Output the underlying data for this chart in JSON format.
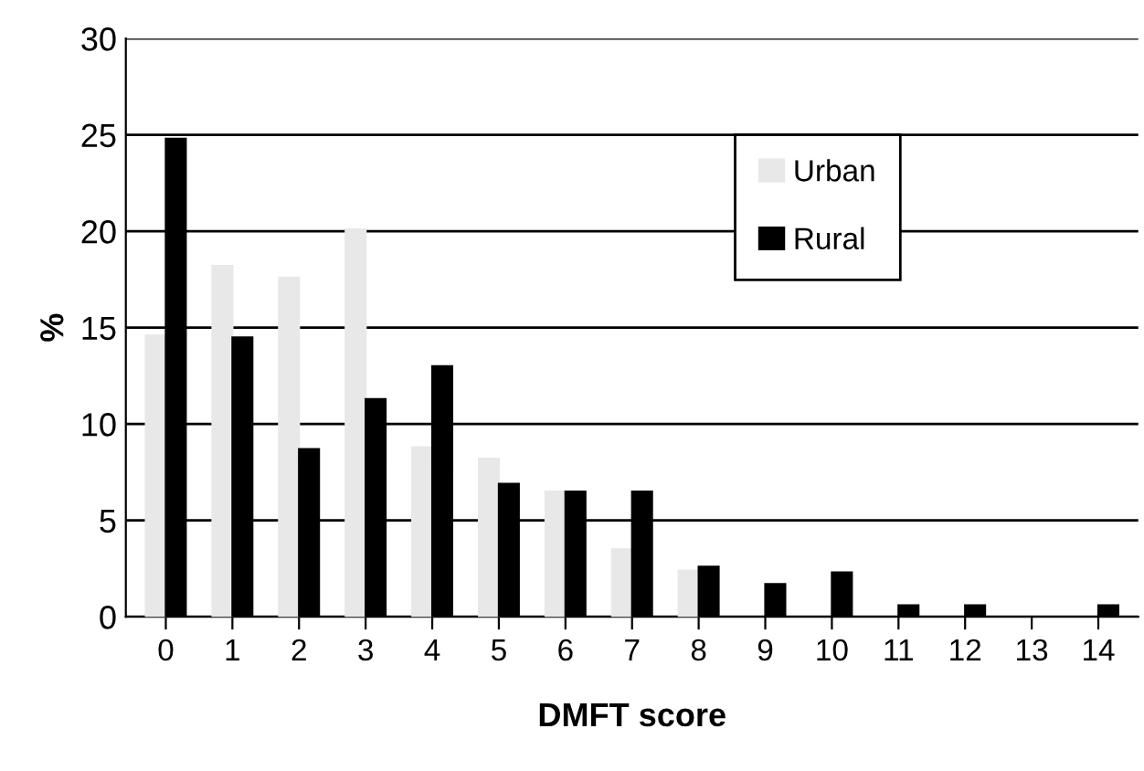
{
  "chart_data": {
    "type": "bar",
    "xlabel": "DMFT score",
    "ylabel": "%",
    "categories": [
      "0",
      "1",
      "2",
      "3",
      "4",
      "5",
      "6",
      "7",
      "8",
      "9",
      "10",
      "11",
      "12",
      "13",
      "14"
    ],
    "series": [
      {
        "name": "Urban",
        "color": "#e8e8e8",
        "values": [
          14.6,
          18.2,
          17.6,
          20.1,
          8.8,
          8.2,
          6.5,
          3.5,
          2.4,
          null,
          null,
          null,
          null,
          null,
          null
        ]
      },
      {
        "name": "Rural",
        "color": "#000000",
        "values": [
          24.8,
          14.5,
          8.7,
          11.3,
          13.0,
          6.9,
          6.5,
          6.5,
          2.6,
          1.7,
          2.3,
          0.6,
          0.6,
          null,
          0.6
        ]
      }
    ],
    "ylim": [
      0,
      30
    ],
    "yticks": [
      0,
      5,
      10,
      15,
      20,
      25,
      30
    ],
    "grid": "y",
    "legend": "top right"
  }
}
